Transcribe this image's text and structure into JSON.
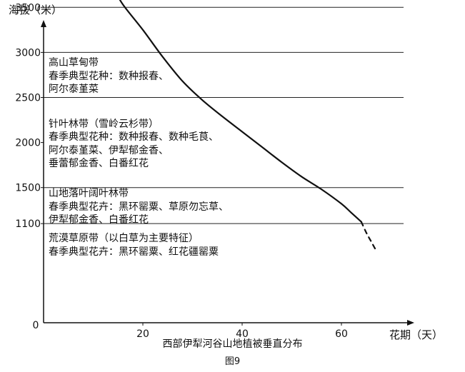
{
  "chart_data": {
    "type": "line",
    "title": "西部伊犁河谷山地植被垂直分布",
    "figure_label": "图9",
    "xlabel": "花期（天）",
    "ylabel": "海拔（米）",
    "origin_label": "0",
    "xlim": [
      0,
      72
    ],
    "ylim": [
      0,
      3900
    ],
    "x_ticks": [
      20,
      40,
      60
    ],
    "y_ticks": [
      1100,
      1500,
      2000,
      2500,
      3000,
      3500
    ],
    "gridlines_y": [
      1100,
      1500,
      2500,
      3000,
      3500
    ],
    "series": [
      {
        "style": "solid",
        "x": [
          14,
          16,
          20,
          24,
          28,
          32,
          36,
          40,
          44,
          48,
          52,
          56,
          60,
          62,
          64
        ],
        "y": [
          3720,
          3530,
          3250,
          2950,
          2680,
          2470,
          2290,
          2120,
          1950,
          1780,
          1620,
          1480,
          1320,
          1220,
          1120
        ]
      },
      {
        "style": "dashed",
        "x": [
          64,
          65,
          66,
          67
        ],
        "y": [
          1120,
          1000,
          900,
          800
        ]
      }
    ],
    "zones": [
      {
        "name": "zone-alpine-meadow",
        "y_top": 3000,
        "y_bottom": 2500,
        "lines": [
          "高山草甸带",
          "春季典型花种：数种报春、",
          "阿尔泰堇菜"
        ]
      },
      {
        "name": "zone-conifer",
        "y_top": 2500,
        "y_bottom": 1500,
        "lines": [
          "针叶林带（雪岭云杉带）",
          "春季典型花种：数种报春、数种毛茛、",
          "阿尔泰堇菜、伊犁郁金香、",
          "垂蕾郁金香、白番红花"
        ]
      },
      {
        "name": "zone-broadleaf",
        "y_top": 1500,
        "y_bottom": 1100,
        "lines": [
          "山地落叶阔叶林带",
          "春季典型花卉：黑环罂粟、草原勿忘草、",
          "伊犁郁金香、白番红花"
        ]
      },
      {
        "name": "zone-desert-steppe",
        "y_top": 1100,
        "y_bottom": 0,
        "lines": [
          "荒漠草原带（以白草为主要特征）",
          "春季典型花卉：黑环罂粟、红花疆罂粟"
        ]
      }
    ]
  }
}
